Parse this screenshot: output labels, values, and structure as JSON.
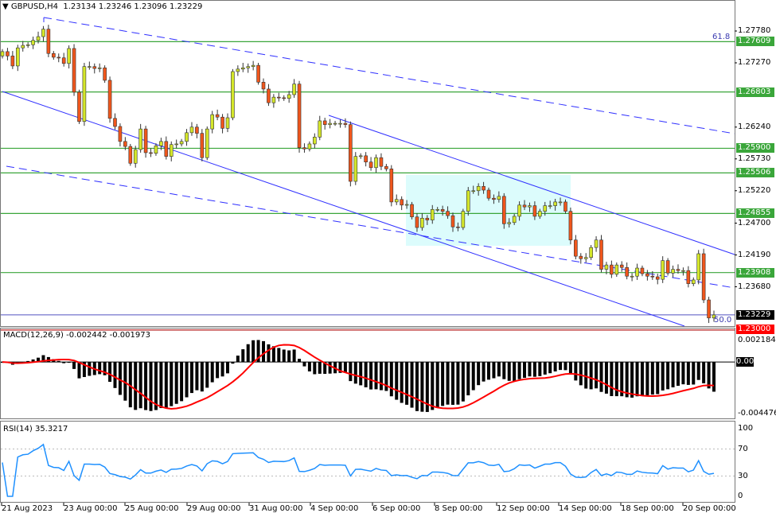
{
  "header": {
    "symbol": "GBPUSD,H4",
    "open": "1.23134",
    "high": "1.23246",
    "low": "1.23096",
    "close": "1.23229"
  },
  "colors": {
    "bull": "#d4e62a",
    "bear": "#f0561c",
    "level": "#3aa63a",
    "trend": "#3030ff",
    "highlight": "#dcfcfc",
    "signal": "#ff0000",
    "rsi": "#1e90ff",
    "current": "#000000",
    "target": "#ff0000"
  },
  "chart_data": [
    {
      "type": "candlestick",
      "title": "GBPUSD,H4",
      "timeframe": "H4",
      "ylim": [
        1.23,
        1.279
      ],
      "y_ticks": [
        "1.27780",
        "1.27270",
        "1.26240",
        "1.25730",
        "1.25220",
        "1.24700",
        "1.24190",
        "1.23680"
      ],
      "x_ticks": [
        "21 Aug 2023",
        "23 Aug 00:00",
        "25 Aug 00:00",
        "29 Aug 00:00",
        "31 Aug 00:00",
        "4 Sep 00:00",
        "6 Sep 00:00",
        "8 Sep 00:00",
        "12 Sep 00:00",
        "14 Sep 00:00",
        "18 Sep 00:00",
        "20 Sep 00:00"
      ],
      "closes": [
        1.2745,
        1.2738,
        1.2722,
        1.2751,
        1.2755,
        1.2756,
        1.2763,
        1.2769,
        1.2781,
        1.2742,
        1.2736,
        1.2735,
        1.2726,
        1.275,
        1.268,
        1.2633,
        1.2721,
        1.2721,
        1.2718,
        1.2719,
        1.2699,
        1.2638,
        1.2625,
        1.2601,
        1.2593,
        1.2566,
        1.2588,
        1.2621,
        1.2583,
        1.2582,
        1.2594,
        1.2601,
        1.2577,
        1.2596,
        1.2597,
        1.2601,
        1.2615,
        1.2624,
        1.2614,
        1.2575,
        1.2621,
        1.2644,
        1.264,
        1.2622,
        1.2639,
        1.2713,
        1.2717,
        1.2719,
        1.2721,
        1.2723,
        1.2696,
        1.2685,
        1.2663,
        1.2672,
        1.2671,
        1.267,
        1.2676,
        1.2693,
        1.2591,
        1.2589,
        1.2597,
        1.2608,
        1.2634,
        1.2628,
        1.263,
        1.263,
        1.263,
        1.2628,
        1.2537,
        1.2577,
        1.2578,
        1.2568,
        1.2559,
        1.2575,
        1.2561,
        1.2557,
        1.2504,
        1.2508,
        1.2499,
        1.25,
        1.248,
        1.2463,
        1.2478,
        1.2475,
        1.2492,
        1.2492,
        1.2489,
        1.2482,
        1.2464,
        1.2463,
        1.2489,
        1.2522,
        1.2522,
        1.2529,
        1.2523,
        1.251,
        1.2508,
        1.2513,
        1.2469,
        1.2471,
        1.2481,
        1.2499,
        1.2496,
        1.2498,
        1.2481,
        1.2489,
        1.2498,
        1.2498,
        1.2504,
        1.2504,
        1.2489,
        1.2443,
        1.2417,
        1.2413,
        1.2415,
        1.2431,
        1.2443,
        1.2396,
        1.2403,
        1.2388,
        1.2403,
        1.2399,
        1.2385,
        1.2385,
        1.2398,
        1.2389,
        1.2385,
        1.2384,
        1.238,
        1.241,
        1.239,
        1.2396,
        1.2394,
        1.2394,
        1.2373,
        1.2379,
        1.2421,
        1.2347,
        1.2318,
        1.23229
      ],
      "levels": [
        {
          "price": "1.27609",
          "kind": "support-resistance"
        },
        {
          "price": "1.26803",
          "kind": "support-resistance"
        },
        {
          "price": "1.25900",
          "kind": "support-resistance"
        },
        {
          "price": "1.25506",
          "kind": "support-resistance"
        },
        {
          "price": "1.24855",
          "kind": "support-resistance"
        },
        {
          "price": "1.23908",
          "kind": "support-resistance"
        }
      ],
      "current_price": "1.23229",
      "target_price": "1.23000",
      "fib_labels": [
        "61.8",
        "50.0"
      ]
    },
    {
      "type": "histogram+line",
      "title": "MACD(12,26,9) -0.002442 -0.001973",
      "ylim": [
        -0.004476,
        0.002184
      ],
      "y_ticks": [
        "0.002184",
        "0.00",
        "-0.004476"
      ]
    },
    {
      "type": "line",
      "title": "RSI(14) 35.3217",
      "ylim": [
        0,
        100
      ],
      "y_ticks": [
        "100",
        "70",
        "30",
        "0"
      ]
    }
  ]
}
